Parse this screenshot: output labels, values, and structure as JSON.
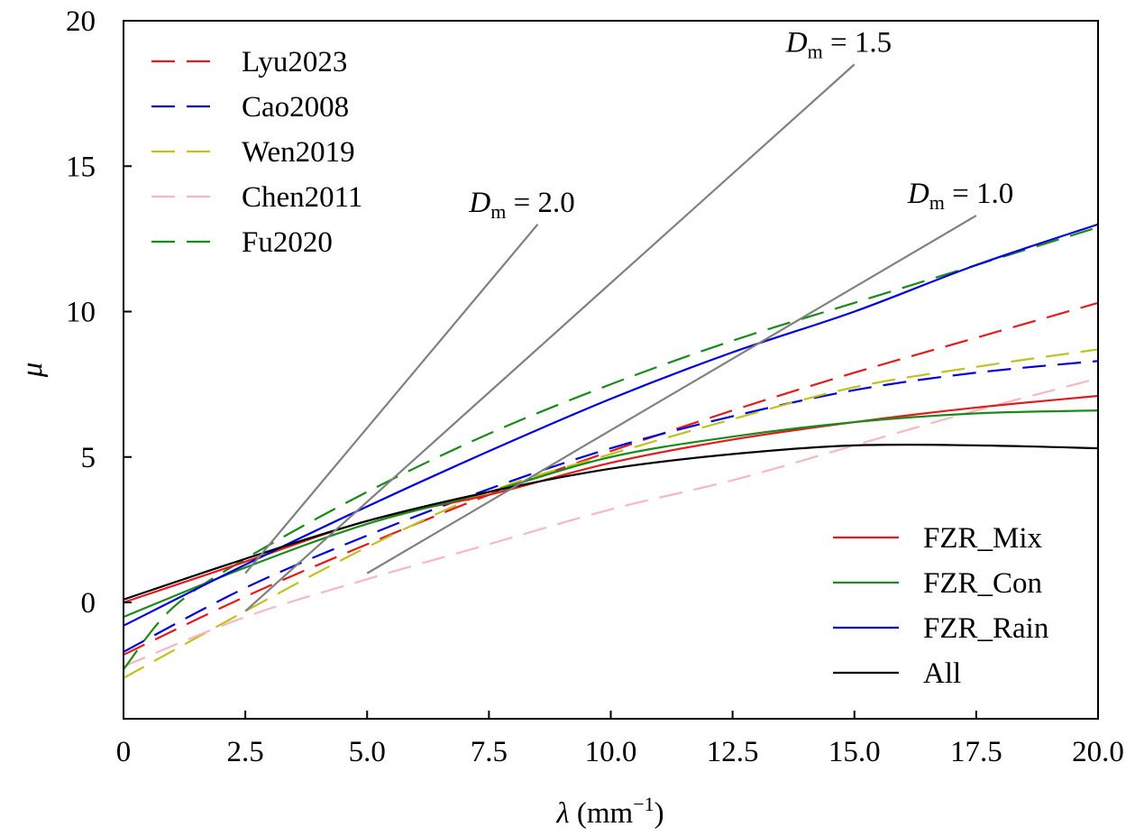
{
  "chart_data": {
    "type": "line",
    "xlabel": {
      "symbol": "λ",
      "unit": "(mm",
      "exp": "−1",
      "close": ")"
    },
    "ylabel": "μ",
    "xlim": [
      0,
      20
    ],
    "ylim": [
      -4,
      20
    ],
    "x_ticks": [
      0,
      2.5,
      5.0,
      7.5,
      10.0,
      12.5,
      15.0,
      17.5,
      20.0
    ],
    "x_tick_labels": [
      "0",
      "2.5",
      "5.0",
      "7.5",
      "10.0",
      "12.5",
      "15.0",
      "17.5",
      "20.0"
    ],
    "y_ticks": [
      0,
      5,
      10,
      15,
      20
    ],
    "y_tick_labels": [
      "0",
      "5",
      "10",
      "15",
      "20"
    ],
    "grid": false,
    "series": [
      {
        "name": "Lyu2023",
        "color": "#e41a1c",
        "dash": true,
        "x": [
          0,
          2.5,
          5,
          7.5,
          10,
          12.5,
          15,
          17.5,
          20
        ],
        "y": [
          -1.8,
          0.2,
          2.0,
          3.7,
          5.2,
          6.6,
          7.9,
          9.1,
          10.3
        ]
      },
      {
        "name": "Cao2008",
        "color": "#0000dd",
        "dash": true,
        "x": [
          0,
          2.5,
          5,
          7.5,
          10,
          12.5,
          15,
          17.5,
          20
        ],
        "y": [
          -1.7,
          0.5,
          2.3,
          3.9,
          5.3,
          6.4,
          7.3,
          7.9,
          8.3
        ]
      },
      {
        "name": "Wen2019",
        "color": "#c0c020",
        "dash": true,
        "x": [
          0,
          2.5,
          5,
          7.5,
          10,
          12.5,
          15,
          17.5,
          20
        ],
        "y": [
          -2.6,
          -0.3,
          1.9,
          3.8,
          5.1,
          6.3,
          7.4,
          8.1,
          8.7
        ]
      },
      {
        "name": "Chen2011",
        "color": "#f5b8c0",
        "dash": true,
        "x": [
          0,
          2.5,
          5,
          7.5,
          10,
          12.5,
          15,
          17.5,
          20
        ],
        "y": [
          -2.2,
          -0.5,
          0.8,
          2.0,
          3.2,
          4.2,
          5.4,
          6.6,
          7.7
        ]
      },
      {
        "name": "Fu2020",
        "color": "#1a8a1a",
        "dash": true,
        "x": [
          0,
          1,
          2.5,
          5,
          7.5,
          10,
          12.5,
          15,
          17.5,
          20
        ],
        "y": [
          -2.3,
          -0.2,
          1.5,
          3.8,
          5.8,
          7.5,
          9.0,
          10.3,
          11.6,
          12.9
        ]
      },
      {
        "name": "FZR_Mix",
        "color": "#e41a1c",
        "dash": false,
        "x": [
          0,
          2.5,
          5,
          7.5,
          10,
          12.5,
          15,
          17.5,
          20
        ],
        "y": [
          0.0,
          1.4,
          2.8,
          3.7,
          4.8,
          5.6,
          6.2,
          6.7,
          7.1
        ]
      },
      {
        "name": "FZR_Con",
        "color": "#1a8a1a",
        "dash": false,
        "x": [
          0,
          2.5,
          5,
          7.5,
          10,
          12.5,
          15,
          17.5,
          20
        ],
        "y": [
          -0.5,
          1.2,
          2.7,
          3.8,
          5.0,
          5.7,
          6.2,
          6.5,
          6.6
        ]
      },
      {
        "name": "FZR_Rain",
        "color": "#0000dd",
        "dash": false,
        "x": [
          0,
          2.5,
          5,
          7.5,
          10,
          12.5,
          15,
          17.5,
          20
        ],
        "y": [
          -0.8,
          1.3,
          3.3,
          5.2,
          7.0,
          8.6,
          10.0,
          11.6,
          13.0
        ]
      },
      {
        "name": "All",
        "color": "#000000",
        "dash": false,
        "x": [
          0,
          2.5,
          5,
          7.5,
          10,
          12.5,
          15,
          17.5,
          20
        ],
        "y": [
          0.1,
          1.5,
          2.8,
          3.8,
          4.6,
          5.1,
          5.4,
          5.4,
          5.3
        ]
      }
    ],
    "reference_lines": [
      {
        "label_var": "D",
        "label_sub": "m",
        "label_val": "= 2.0",
        "x": [
          2.5,
          8.5
        ],
        "y": [
          1.0,
          13.0
        ]
      },
      {
        "label_var": "D",
        "label_sub": "m",
        "label_val": "= 1.5",
        "x": [
          2.5,
          15.0
        ],
        "y": [
          -0.3,
          18.5
        ]
      },
      {
        "label_var": "D",
        "label_sub": "m",
        "label_val": "= 1.0",
        "x": [
          5.0,
          17.5
        ],
        "y": [
          1.0,
          13.3
        ]
      }
    ],
    "legends": [
      {
        "placement": "top-left",
        "items": [
          "Lyu2023",
          "Cao2008",
          "Wen2019",
          "Chen2011",
          "Fu2020"
        ]
      },
      {
        "placement": "bottom-right",
        "items": [
          "FZR_Mix",
          "FZR_Con",
          "FZR_Rain",
          "All"
        ]
      }
    ],
    "reference_line_color": "#808080"
  }
}
